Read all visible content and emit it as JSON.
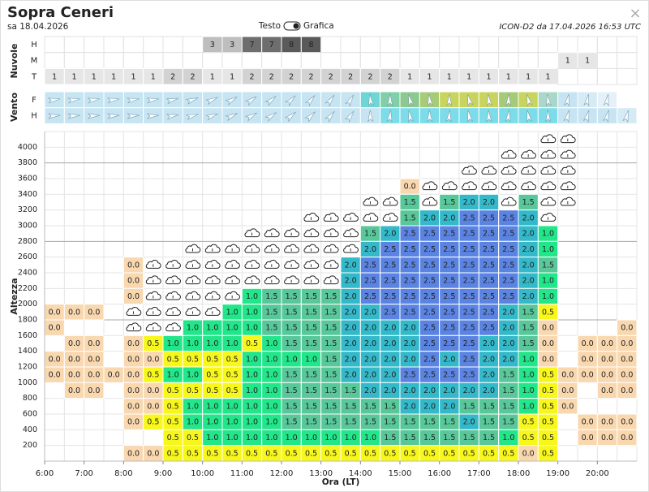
{
  "header": {
    "title": "Sopra Ceneri",
    "date": "sa 18.04.2026",
    "toggle_left": "Testo",
    "toggle_right": "Grafica",
    "model": "ICON-D2 da 17.04.2026 16:53 UTC"
  },
  "clouds": {
    "label": "Nuvole",
    "rows": [
      {
        "name": "H",
        "values": [
          null,
          null,
          null,
          null,
          null,
          null,
          null,
          null,
          3,
          3,
          7,
          7,
          8,
          8,
          null,
          null,
          null,
          null,
          null,
          null,
          null,
          null,
          null,
          null,
          null,
          null,
          null,
          null,
          null,
          null
        ]
      },
      {
        "name": "M",
        "values": [
          null,
          null,
          null,
          null,
          null,
          null,
          null,
          null,
          null,
          null,
          null,
          null,
          null,
          null,
          null,
          null,
          null,
          null,
          null,
          null,
          null,
          null,
          null,
          null,
          null,
          null,
          1,
          1,
          null,
          null
        ]
      },
      {
        "name": "T",
        "values": [
          1,
          1,
          1,
          1,
          1,
          1,
          2,
          2,
          1,
          1,
          2,
          2,
          2,
          2,
          2,
          2,
          2,
          2,
          1,
          1,
          1,
          1,
          1,
          1,
          1,
          1,
          null,
          null,
          null,
          null
        ]
      }
    ]
  },
  "wind": {
    "label": "Vento",
    "rows": [
      {
        "name": "F"
      },
      {
        "name": "H"
      }
    ]
  },
  "altitude": {
    "label": "Altezza",
    "ticks": [
      200,
      400,
      600,
      800,
      1000,
      1200,
      1400,
      1600,
      1800,
      2000,
      2200,
      2400,
      2600,
      2800,
      3000,
      3200,
      3400,
      3600,
      3800,
      4000
    ]
  },
  "time": {
    "label": "Ora (LT)",
    "ticks": [
      "6:00",
      "7:00",
      "8:00",
      "9:00",
      "10:00",
      "11:00",
      "12:00",
      "13:00",
      "14:00",
      "15:00",
      "16:00",
      "17:00",
      "18:00",
      "19:00",
      "20:00"
    ]
  },
  "cell_colors": [
    "#f9d8b0",
    "#f7f71c",
    "#22e68a",
    "#58c79a",
    "#33b9c9",
    "#5b84e2"
  ],
  "grid": [
    [
      null,
      null,
      null,
      null,
      null,
      null,
      null,
      null,
      null,
      null,
      null,
      null,
      null,
      null,
      null,
      null,
      null,
      null,
      null,
      null,
      null,
      null,
      null,
      null,
      null,
      null,
      null,
      null,
      null,
      null
    ],
    [
      null,
      null,
      null,
      null,
      null,
      null,
      null,
      null,
      null,
      null,
      null,
      null,
      null,
      null,
      null,
      null,
      null,
      null,
      null,
      null,
      null,
      null,
      null,
      null,
      null,
      null,
      null,
      null,
      null,
      null
    ],
    [
      null,
      null,
      null,
      null,
      null,
      null,
      null,
      null,
      null,
      null,
      null,
      null,
      null,
      null,
      null,
      null,
      null,
      null,
      null,
      null,
      null,
      null,
      null,
      null,
      null,
      null,
      null,
      null,
      null,
      null
    ],
    [
      null,
      null,
      null,
      null,
      null,
      null,
      null,
      null,
      null,
      null,
      null,
      null,
      null,
      null,
      null,
      null,
      null,
      null,
      "0.0",
      null,
      null,
      null,
      null,
      null,
      null,
      null,
      null,
      null,
      null,
      null
    ],
    [
      null,
      null,
      null,
      null,
      null,
      null,
      null,
      null,
      null,
      null,
      null,
      null,
      null,
      null,
      null,
      null,
      null,
      null,
      "1.5",
      null,
      "1.5",
      "2.0",
      "2.0",
      null,
      "1.5",
      null,
      null,
      null,
      null,
      null
    ],
    [
      null,
      null,
      null,
      null,
      null,
      null,
      null,
      null,
      null,
      null,
      null,
      null,
      null,
      null,
      null,
      null,
      null,
      null,
      "1.5",
      "2.0",
      "2.0",
      "2.5",
      "2.5",
      "2.5",
      "2.0",
      null,
      null,
      null,
      null,
      null
    ],
    [
      null,
      null,
      null,
      null,
      null,
      null,
      null,
      null,
      null,
      null,
      null,
      null,
      null,
      null,
      null,
      null,
      "1.5",
      "2.0",
      "2.5",
      "2.5",
      "2.5",
      "2.5",
      "2.5",
      "2.5",
      "2.0",
      "1.0",
      null,
      null,
      null,
      null
    ],
    [
      null,
      null,
      null,
      null,
      null,
      null,
      null,
      null,
      null,
      null,
      null,
      null,
      null,
      null,
      null,
      null,
      "2.0",
      "2.5",
      "2.5",
      "2.5",
      "2.5",
      "2.5",
      "2.5",
      "2.5",
      "2.0",
      "1.0",
      null,
      null,
      null,
      null
    ],
    [
      null,
      null,
      null,
      null,
      "0.0",
      null,
      null,
      null,
      null,
      null,
      null,
      null,
      null,
      null,
      null,
      "2.0",
      "2.5",
      "2.5",
      "2.5",
      "2.5",
      "2.5",
      "2.5",
      "2.5",
      "2.5",
      "2.0",
      "1.5",
      null,
      null,
      null,
      null
    ],
    [
      null,
      null,
      null,
      null,
      "0.0",
      null,
      null,
      null,
      null,
      null,
      null,
      null,
      null,
      null,
      null,
      "2.0",
      "2.5",
      "2.5",
      "2.5",
      "2.5",
      "2.5",
      "2.5",
      "2.5",
      "2.5",
      "2.0",
      "1.0",
      null,
      null,
      null,
      null
    ],
    [
      null,
      null,
      null,
      null,
      "0.0",
      null,
      null,
      null,
      null,
      null,
      "1.0",
      "1.5",
      "1.5",
      "1.5",
      "1.5",
      "2.0",
      "2.5",
      "2.5",
      "2.5",
      "2.5",
      "2.5",
      "2.5",
      "2.5",
      "2.5",
      "2.0",
      "1.0",
      null,
      null,
      null,
      null
    ],
    [
      "0.0",
      "0.0",
      "0.0",
      null,
      null,
      null,
      null,
      null,
      null,
      "1.0",
      "1.0",
      "1.5",
      "1.5",
      "1.5",
      "1.5",
      "2.0",
      "2.0",
      "2.5",
      "2.5",
      "2.5",
      "2.5",
      "2.5",
      "2.5",
      "2.0",
      "1.5",
      "0.5",
      null,
      null,
      null,
      null
    ],
    [
      "0.0",
      null,
      null,
      null,
      null,
      null,
      null,
      "1.0",
      "1.0",
      "1.0",
      "1.0",
      "1.5",
      "1.5",
      "1.5",
      "1.5",
      "2.0",
      "2.0",
      "2.0",
      "2.0",
      "2.5",
      "2.5",
      "2.5",
      "2.5",
      "2.0",
      "1.5",
      "0.0",
      null,
      null,
      null,
      "0.0"
    ],
    [
      null,
      "0.0",
      "0.0",
      null,
      "0.0",
      "0.5",
      "1.0",
      "1.0",
      "1.0",
      "1.0",
      "0.5",
      "1.0",
      "1.5",
      "1.5",
      "1.5",
      "2.0",
      "2.0",
      "2.0",
      "2.0",
      "2.5",
      "2.5",
      "2.5",
      "2.0",
      "2.0",
      "1.5",
      "0.0",
      null,
      "0.0",
      "0.0",
      "0.0"
    ],
    [
      "0.0",
      "0.0",
      "0.0",
      null,
      "0.0",
      "0.0",
      "0.5",
      "0.5",
      "0.5",
      "0.5",
      "1.0",
      "1.0",
      "1.0",
      "1.0",
      "1.5",
      "2.0",
      "2.0",
      "2.0",
      "2.0",
      "2.5",
      "2.0",
      "2.5",
      "2.0",
      "2.0",
      "1.0",
      "0.0",
      null,
      "0.0",
      "0.0",
      "0.0"
    ],
    [
      "0.0",
      "0.0",
      "0.0",
      "0.0",
      "0.0",
      "0.5",
      "1.0",
      "1.0",
      "0.5",
      "0.5",
      "1.0",
      "1.0",
      "1.5",
      "1.5",
      "1.5",
      "2.0",
      "2.0",
      "2.0",
      "2.5",
      "2.5",
      "2.5",
      "2.5",
      "2.0",
      "1.5",
      "1.0",
      "0.5",
      "0.0",
      "0.0",
      "0.0",
      "0.0"
    ],
    [
      null,
      "0.0",
      "0.0",
      null,
      "0.0",
      "0.0",
      "0.5",
      "0.5",
      "0.5",
      "0.5",
      "1.0",
      "1.0",
      "1.5",
      "1.5",
      "1.5",
      "1.5",
      "2.0",
      "2.0",
      "2.0",
      "2.0",
      "2.0",
      "2.0",
      "2.0",
      "1.5",
      "1.0",
      "0.5",
      "0.0",
      null,
      "0.0",
      "0.0"
    ],
    [
      null,
      null,
      null,
      null,
      "0.0",
      "0.0",
      "0.5",
      "1.0",
      "1.0",
      "1.0",
      "1.0",
      "1.0",
      "1.5",
      "1.5",
      "1.5",
      "1.5",
      "1.5",
      "1.5",
      "2.0",
      "2.0",
      "2.0",
      "1.5",
      "1.5",
      "1.5",
      "1.0",
      "0.5",
      "0.0",
      null,
      null,
      null
    ],
    [
      null,
      null,
      null,
      null,
      "0.0",
      "0.5",
      "0.5",
      "1.0",
      "1.0",
      "1.0",
      "1.0",
      "1.0",
      "1.5",
      "1.5",
      "1.5",
      "1.5",
      "1.5",
      "1.5",
      "1.5",
      "1.5",
      "1.5",
      "2.0",
      "1.5",
      "1.5",
      "0.5",
      "0.5",
      null,
      "0.0",
      "0.0",
      "0.0"
    ],
    [
      null,
      null,
      null,
      null,
      null,
      null,
      "0.5",
      "0.5",
      "1.0",
      "1.0",
      "1.0",
      "1.0",
      "1.0",
      "1.0",
      "1.0",
      "1.0",
      "1.0",
      "1.5",
      "1.5",
      "1.5",
      "1.5",
      "1.5",
      "1.5",
      "1.0",
      "0.5",
      "0.5",
      null,
      "0.0",
      "0.0",
      "0.0"
    ],
    [
      null,
      null,
      null,
      null,
      "0.0",
      "0.0",
      "0.5",
      "0.5",
      "0.5",
      "0.5",
      "0.5",
      "0.5",
      "0.5",
      "0.5",
      "0.5",
      "0.5",
      "0.5",
      "0.5",
      "0.5",
      "0.5",
      "0.5",
      "0.5",
      "0.5",
      "0.5",
      "0.0",
      "0.5",
      null,
      null,
      null,
      null
    ]
  ]
}
